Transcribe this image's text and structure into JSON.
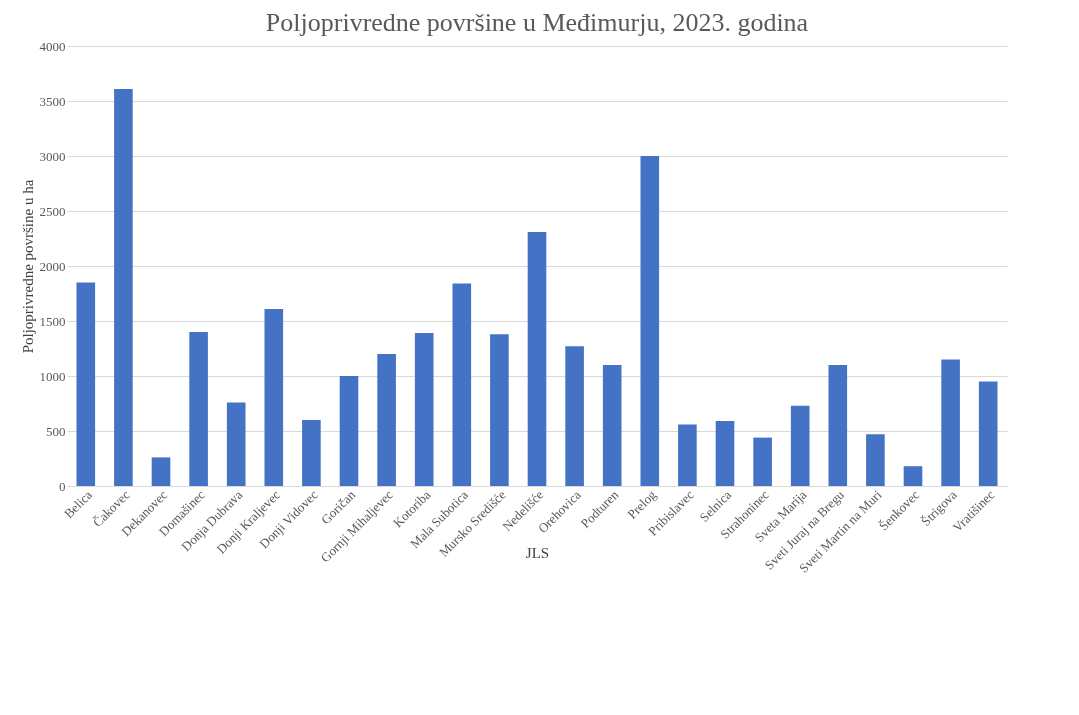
{
  "chart_data": {
    "type": "bar",
    "title": "Poljoprivredne površine u Međimurju, 2023. godina",
    "xlabel": "JLS",
    "ylabel": "Poljoprivredne površine u ha",
    "categories": [
      "Belica",
      "Čakovec",
      "Dekanovec",
      "Domašinec",
      "Donja Dubrava",
      "Donji Kraljevec",
      "Donji Vidovec",
      "Goričan",
      "Gornji Mihaljevec",
      "Kotoriba",
      "Mala Subotica",
      "Mursko Središće",
      "Nedelišće",
      "Orehovica",
      "Podturen",
      "Prelog",
      "Pribislavec",
      "Selnica",
      "Strahoninec",
      "Sveta Marija",
      "Sveti Juraj na Bregu",
      "Sveti Martin na Muri",
      "Šenkovec",
      "Štrigova",
      "Vratišinec"
    ],
    "values": [
      1850,
      3610,
      260,
      1400,
      760,
      1610,
      600,
      1000,
      1200,
      1390,
      1840,
      1380,
      2310,
      1270,
      1100,
      3000,
      560,
      590,
      440,
      730,
      1100,
      470,
      180,
      1150,
      950
    ],
    "color": "#4472c4",
    "ylim": [
      0,
      4000
    ],
    "yticks": [
      0,
      500,
      1000,
      1500,
      2000,
      2500,
      3000,
      3500,
      4000
    ],
    "grid": "y"
  }
}
